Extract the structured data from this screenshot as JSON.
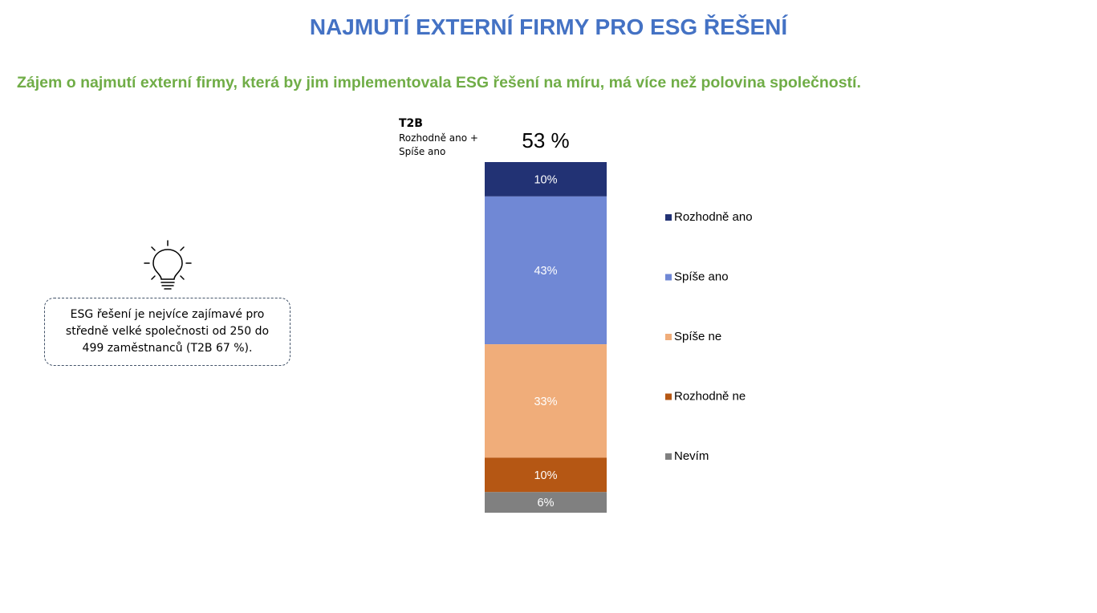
{
  "page": {
    "title": "NAJMUTÍ EXTERNÍ FIRMY PRO ESG ŘEŠENÍ",
    "subtitle": "Zájem o najmutí externí firmy, která by jim implementovala ESG řešení na míru, má více než polovina společností.",
    "title_color": "#4472c4",
    "subtitle_color": "#70ad47"
  },
  "t2b": {
    "label": "T2B",
    "description": "Rozhodně ano + Spíše ano",
    "value_label": "53 %"
  },
  "callout": {
    "icon": "lightbulb-icon",
    "text": "ESG řešení je nejvíce zajímavé pro středně velké společnosti od 250 do 499 zaměstnanců (T2B 67 %)."
  },
  "chart_data": {
    "type": "bar",
    "stacked": true,
    "orientation": "vertical",
    "unit": "%",
    "legend_position": "right",
    "series": [
      {
        "name": "Rozhodně ano",
        "value": 10,
        "label": "10%",
        "color": "#223274"
      },
      {
        "name": "Spíše ano",
        "value": 43,
        "label": "43%",
        "color": "#7088d5"
      },
      {
        "name": "Spíše ne",
        "value": 33,
        "label": "33%",
        "color": "#f0ad7a"
      },
      {
        "name": "Rozhodně ne",
        "value": 10,
        "label": "10%",
        "color": "#b55714"
      },
      {
        "name": "Nevím",
        "value": 6,
        "label": "6%",
        "color": "#808080"
      }
    ]
  }
}
